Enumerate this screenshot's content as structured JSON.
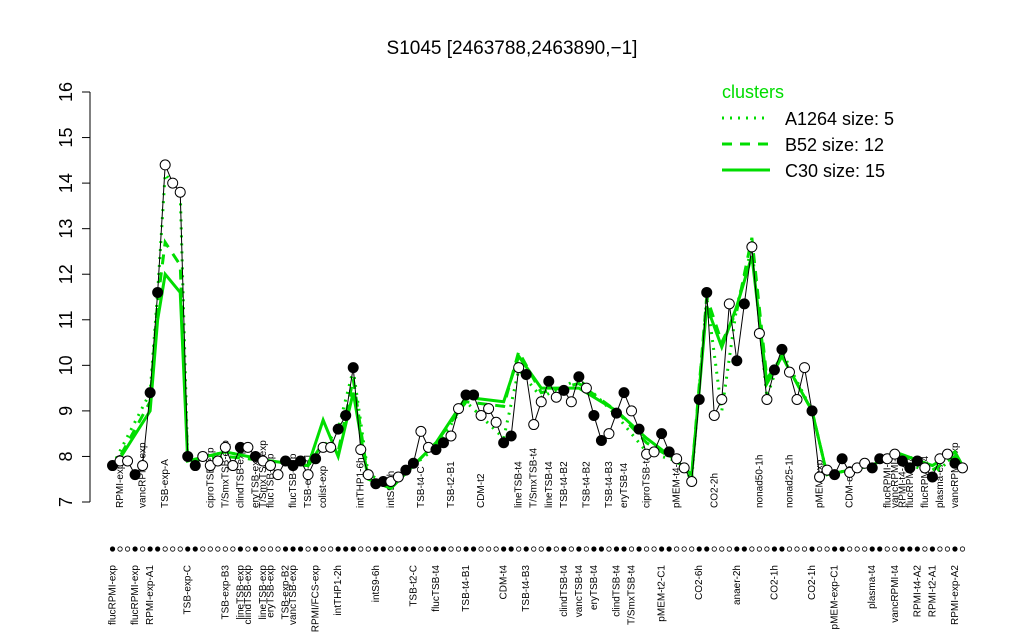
{
  "chart_data": {
    "type": "line",
    "title": "S1045 [2463788,2463890,−1]",
    "ylim": [
      7,
      16
    ],
    "yticks": [
      7,
      8,
      9,
      10,
      11,
      12,
      13,
      14,
      15,
      16
    ],
    "xlim": [
      0,
      115
    ],
    "line_color": "#000000",
    "values": [
      7.8,
      7.9,
      7.9,
      7.6,
      7.8,
      9.4,
      11.6,
      14.4,
      14.0,
      13.8,
      8.0,
      7.8,
      8.0,
      7.8,
      7.9,
      8.2,
      7.8,
      8.2,
      8.2,
      8.0,
      7.9,
      7.8,
      7.6,
      7.9,
      7.8,
      7.9,
      7.6,
      7.95,
      8.2,
      8.2,
      8.6,
      8.9,
      9.95,
      8.15,
      7.6,
      7.4,
      7.45,
      7.45,
      7.55,
      7.7,
      7.85,
      8.55,
      8.2,
      8.15,
      8.3,
      8.45,
      9.05,
      9.35,
      9.35,
      8.9,
      9.05,
      8.75,
      8.3,
      8.45,
      9.95,
      9.8,
      8.7,
      9.2,
      9.65,
      9.3,
      9.45,
      9.2,
      9.75,
      9.5,
      8.9,
      8.35,
      8.5,
      8.95,
      9.4,
      9.0,
      8.6,
      8.05,
      8.1,
      8.5,
      8.1,
      7.95,
      7.75,
      7.45,
      9.25,
      11.6,
      8.9,
      9.25,
      11.35,
      10.1,
      11.35,
      12.6,
      10.7,
      9.25,
      9.9,
      10.35,
      9.85,
      9.25,
      9.95,
      9.0,
      7.55,
      7.7,
      7.6,
      7.95,
      7.65,
      7.75,
      7.85,
      7.75,
      7.95,
      7.95,
      8.05,
      7.9,
      7.75,
      7.9,
      7.75,
      7.55,
      7.95,
      8.05,
      7.85,
      7.75
    ],
    "filled": [
      true,
      false,
      false,
      true,
      false,
      true,
      true,
      false,
      false,
      false,
      true,
      true,
      false,
      false,
      false,
      false,
      false,
      true,
      false,
      true,
      false,
      false,
      false,
      true,
      true,
      true,
      false,
      true,
      false,
      false,
      true,
      true,
      true,
      false,
      false,
      true,
      true,
      false,
      false,
      true,
      true,
      false,
      false,
      true,
      true,
      false,
      false,
      true,
      true,
      false,
      false,
      false,
      true,
      true,
      false,
      true,
      false,
      false,
      true,
      false,
      true,
      false,
      true,
      false,
      true,
      true,
      false,
      true,
      true,
      false,
      true,
      false,
      false,
      true,
      true,
      false,
      false,
      false,
      true,
      true,
      false,
      false,
      false,
      true,
      true,
      false,
      false,
      false,
      true,
      true,
      false,
      false,
      false,
      true,
      false,
      false,
      true,
      true,
      false,
      false,
      false,
      true,
      true,
      false,
      false,
      true,
      true,
      true,
      false,
      true,
      false,
      false,
      true,
      false
    ],
    "xticks": [
      {
        "value": 1,
        "label": "flucRPMI-exp"
      },
      {
        "value": 4,
        "label": "flucRPMI-exp"
      },
      {
        "value": 6,
        "label": "RPMI-exp-A1"
      },
      {
        "value": 11,
        "label": "TSB-exp-C"
      },
      {
        "value": 16,
        "label": "TSB-exp-B3"
      },
      {
        "value": 18,
        "label": "lineTSB-exp"
      },
      {
        "value": 19,
        "label": "clindTSB-exp"
      },
      {
        "value": 21,
        "label": "lineTSB-exp"
      },
      {
        "value": 22,
        "label": "eryTSB-exp"
      },
      {
        "value": 24,
        "label": "TSB-exp-B2"
      },
      {
        "value": 25,
        "label": "vancTSB-exp"
      },
      {
        "value": 28,
        "label": "RPMI/FCS-exp"
      },
      {
        "value": 31,
        "label": "intTHP1-2h"
      },
      {
        "value": 36,
        "label": "intS9-6h"
      },
      {
        "value": 41,
        "label": "TSB-t2-C"
      },
      {
        "value": 44,
        "label": "flucTSB-t4"
      },
      {
        "value": 48,
        "label": "TSB-t4-B1"
      },
      {
        "value": 53,
        "label": "CDM-t4"
      },
      {
        "value": 56,
        "label": "TSB-t4-B3"
      },
      {
        "value": 61,
        "label": "clindTSB-t4"
      },
      {
        "value": 63,
        "label": "vancTSB-t4"
      },
      {
        "value": 65,
        "label": "eryTSB-t4"
      },
      {
        "value": 68,
        "label": "clindTSB-t4"
      },
      {
        "value": 70,
        "label": "T/SmxTSB-t4"
      },
      {
        "value": 74,
        "label": "pMEM-t2-C1"
      },
      {
        "value": 79,
        "label": "CO2-6h"
      },
      {
        "value": 84,
        "label": "anaer-2h"
      },
      {
        "value": 89,
        "label": "CO2-1h"
      },
      {
        "value": 94,
        "label": "CO2-1h"
      },
      {
        "value": 97,
        "label": "pMEM-exp-C1"
      },
      {
        "value": 102,
        "label": "plasma-t4"
      },
      {
        "value": 105,
        "label": "vancRPMI-t4"
      },
      {
        "value": 108,
        "label": "RPMI-t4-A2"
      },
      {
        "value": 110,
        "label": "RPMI-t2-A1"
      },
      {
        "value": 113,
        "label": "RPMI-exp-A2"
      }
    ],
    "annotations": [
      {
        "x": 2,
        "text": "RPMI-exp-A"
      },
      {
        "x": 5,
        "text": "vancRPMI-exp"
      },
      {
        "x": 8,
        "text": "TSB-exp-A"
      },
      {
        "x": 14,
        "text": "ciproTSB-exp"
      },
      {
        "x": 16,
        "text": "T/SmxTSB-exp"
      },
      {
        "x": 18,
        "text": "clindTSB-exp"
      },
      {
        "x": 20,
        "text": "eryTSB-exp"
      },
      {
        "x": 21,
        "text": "T/SmxTSB-exp"
      },
      {
        "x": 22,
        "text": "flucTSB-exp"
      },
      {
        "x": 25,
        "text": "flucTSB-exp"
      },
      {
        "x": 27,
        "text": "TSB-exp-B1"
      },
      {
        "x": 29,
        "text": "colist-exp"
      },
      {
        "x": 34,
        "text": "intTHP1-6h"
      },
      {
        "x": 38,
        "text": "intS9-1h"
      },
      {
        "x": 42,
        "text": "TSB-t4-C"
      },
      {
        "x": 46,
        "text": "TSB-t2-B1"
      },
      {
        "x": 50,
        "text": "CDM-t2"
      },
      {
        "x": 55,
        "text": "lineTSB-t4"
      },
      {
        "x": 57,
        "text": "T/SmxTSB-t4"
      },
      {
        "x": 59,
        "text": "lineTSB-t4"
      },
      {
        "x": 61,
        "text": "TSB-t4-B2"
      },
      {
        "x": 64,
        "text": "TSB-t4-B2"
      },
      {
        "x": 67,
        "text": "TSB-t4-B3"
      },
      {
        "x": 69,
        "text": "eryTSB-t4"
      },
      {
        "x": 72,
        "text": "ciproTSB-t4"
      },
      {
        "x": 76,
        "text": "pMEM-t4-C"
      },
      {
        "x": 81,
        "text": "CO2-2h"
      },
      {
        "x": 87,
        "text": "nonad50-1h"
      },
      {
        "x": 91,
        "text": "nonad25-1h"
      },
      {
        "x": 95,
        "text": "pMEM-exp"
      },
      {
        "x": 99,
        "text": "CDM-exp"
      },
      {
        "x": 104,
        "text": "flucRPMI-t4"
      },
      {
        "x": 105,
        "text": "vancRPMI-t4"
      },
      {
        "x": 106,
        "text": "RPMI-t4-A2"
      },
      {
        "x": 107,
        "text": "flucRPMI-t4"
      },
      {
        "x": 109,
        "text": "flucRPMI-t4"
      },
      {
        "x": 111,
        "text": "plasma-exp"
      },
      {
        "x": 113,
        "text": "vancRPMI-exp"
      }
    ],
    "legend_title": "clusters",
    "legend_color": "#00dd00",
    "series": [
      {
        "name": "A1264 size: 5",
        "color": "#00dd00",
        "dash": "dotted",
        "x": [
          1,
          6,
          7,
          8,
          10,
          11,
          16,
          22,
          27,
          29,
          31,
          33,
          35,
          38,
          41,
          44,
          48,
          53,
          55,
          58,
          63,
          68,
          72,
          76,
          78,
          80,
          82,
          84,
          86,
          88,
          90,
          94,
          96,
          102,
          105,
          110,
          113,
          114
        ],
        "values": [
          7.8,
          9.4,
          11.6,
          14.2,
          13.8,
          7.9,
          8.1,
          7.9,
          7.8,
          8.2,
          8.6,
          9.9,
          7.6,
          7.4,
          7.8,
          8.2,
          9.2,
          8.4,
          9.9,
          9.3,
          9.7,
          8.9,
          8.1,
          7.9,
          7.5,
          11.5,
          9.0,
          11.3,
          12.6,
          9.3,
          10.3,
          9.0,
          7.6,
          7.8,
          8.0,
          7.6,
          8.0,
          7.8
        ]
      },
      {
        "name": "B52 size: 12",
        "color": "#00dd00",
        "dash": "dashed",
        "x": [
          1,
          6,
          7,
          8,
          10,
          11,
          16,
          22,
          27,
          29,
          31,
          33,
          35,
          38,
          41,
          44,
          48,
          53,
          55,
          58,
          63,
          68,
          72,
          76,
          78,
          80,
          82,
          84,
          86,
          88,
          90,
          94,
          96,
          102,
          105,
          110,
          113,
          114
        ],
        "values": [
          7.7,
          9.2,
          11.4,
          12.7,
          12.2,
          7.9,
          8.0,
          7.9,
          7.8,
          8.3,
          8.1,
          9.7,
          7.5,
          7.3,
          7.8,
          8.3,
          9.2,
          9.1,
          10.3,
          9.4,
          9.6,
          9.0,
          8.3,
          7.9,
          7.6,
          11.5,
          10.5,
          11.2,
          12.8,
          9.7,
          10.2,
          9.0,
          7.6,
          7.8,
          8.1,
          7.7,
          8.0,
          7.8
        ]
      },
      {
        "name": "C30 size: 15",
        "color": "#00dd00",
        "dash": "solid",
        "x": [
          1,
          6,
          7,
          8,
          10,
          11,
          16,
          22,
          27,
          29,
          31,
          33,
          35,
          38,
          41,
          44,
          48,
          53,
          55,
          58,
          63,
          68,
          72,
          76,
          78,
          80,
          82,
          84,
          86,
          88,
          90,
          94,
          96,
          102,
          105,
          110,
          113,
          114
        ],
        "values": [
          7.7,
          9.0,
          11.0,
          12.0,
          11.6,
          7.9,
          8.1,
          7.9,
          7.8,
          8.8,
          8.0,
          9.4,
          7.5,
          7.3,
          7.8,
          8.3,
          9.3,
          9.2,
          10.2,
          9.5,
          9.5,
          9.0,
          8.4,
          7.9,
          7.6,
          11.3,
          10.4,
          11.3,
          12.4,
          9.6,
          10.2,
          9.0,
          7.6,
          7.8,
          8.1,
          7.8,
          8.1,
          7.8
        ]
      }
    ]
  }
}
